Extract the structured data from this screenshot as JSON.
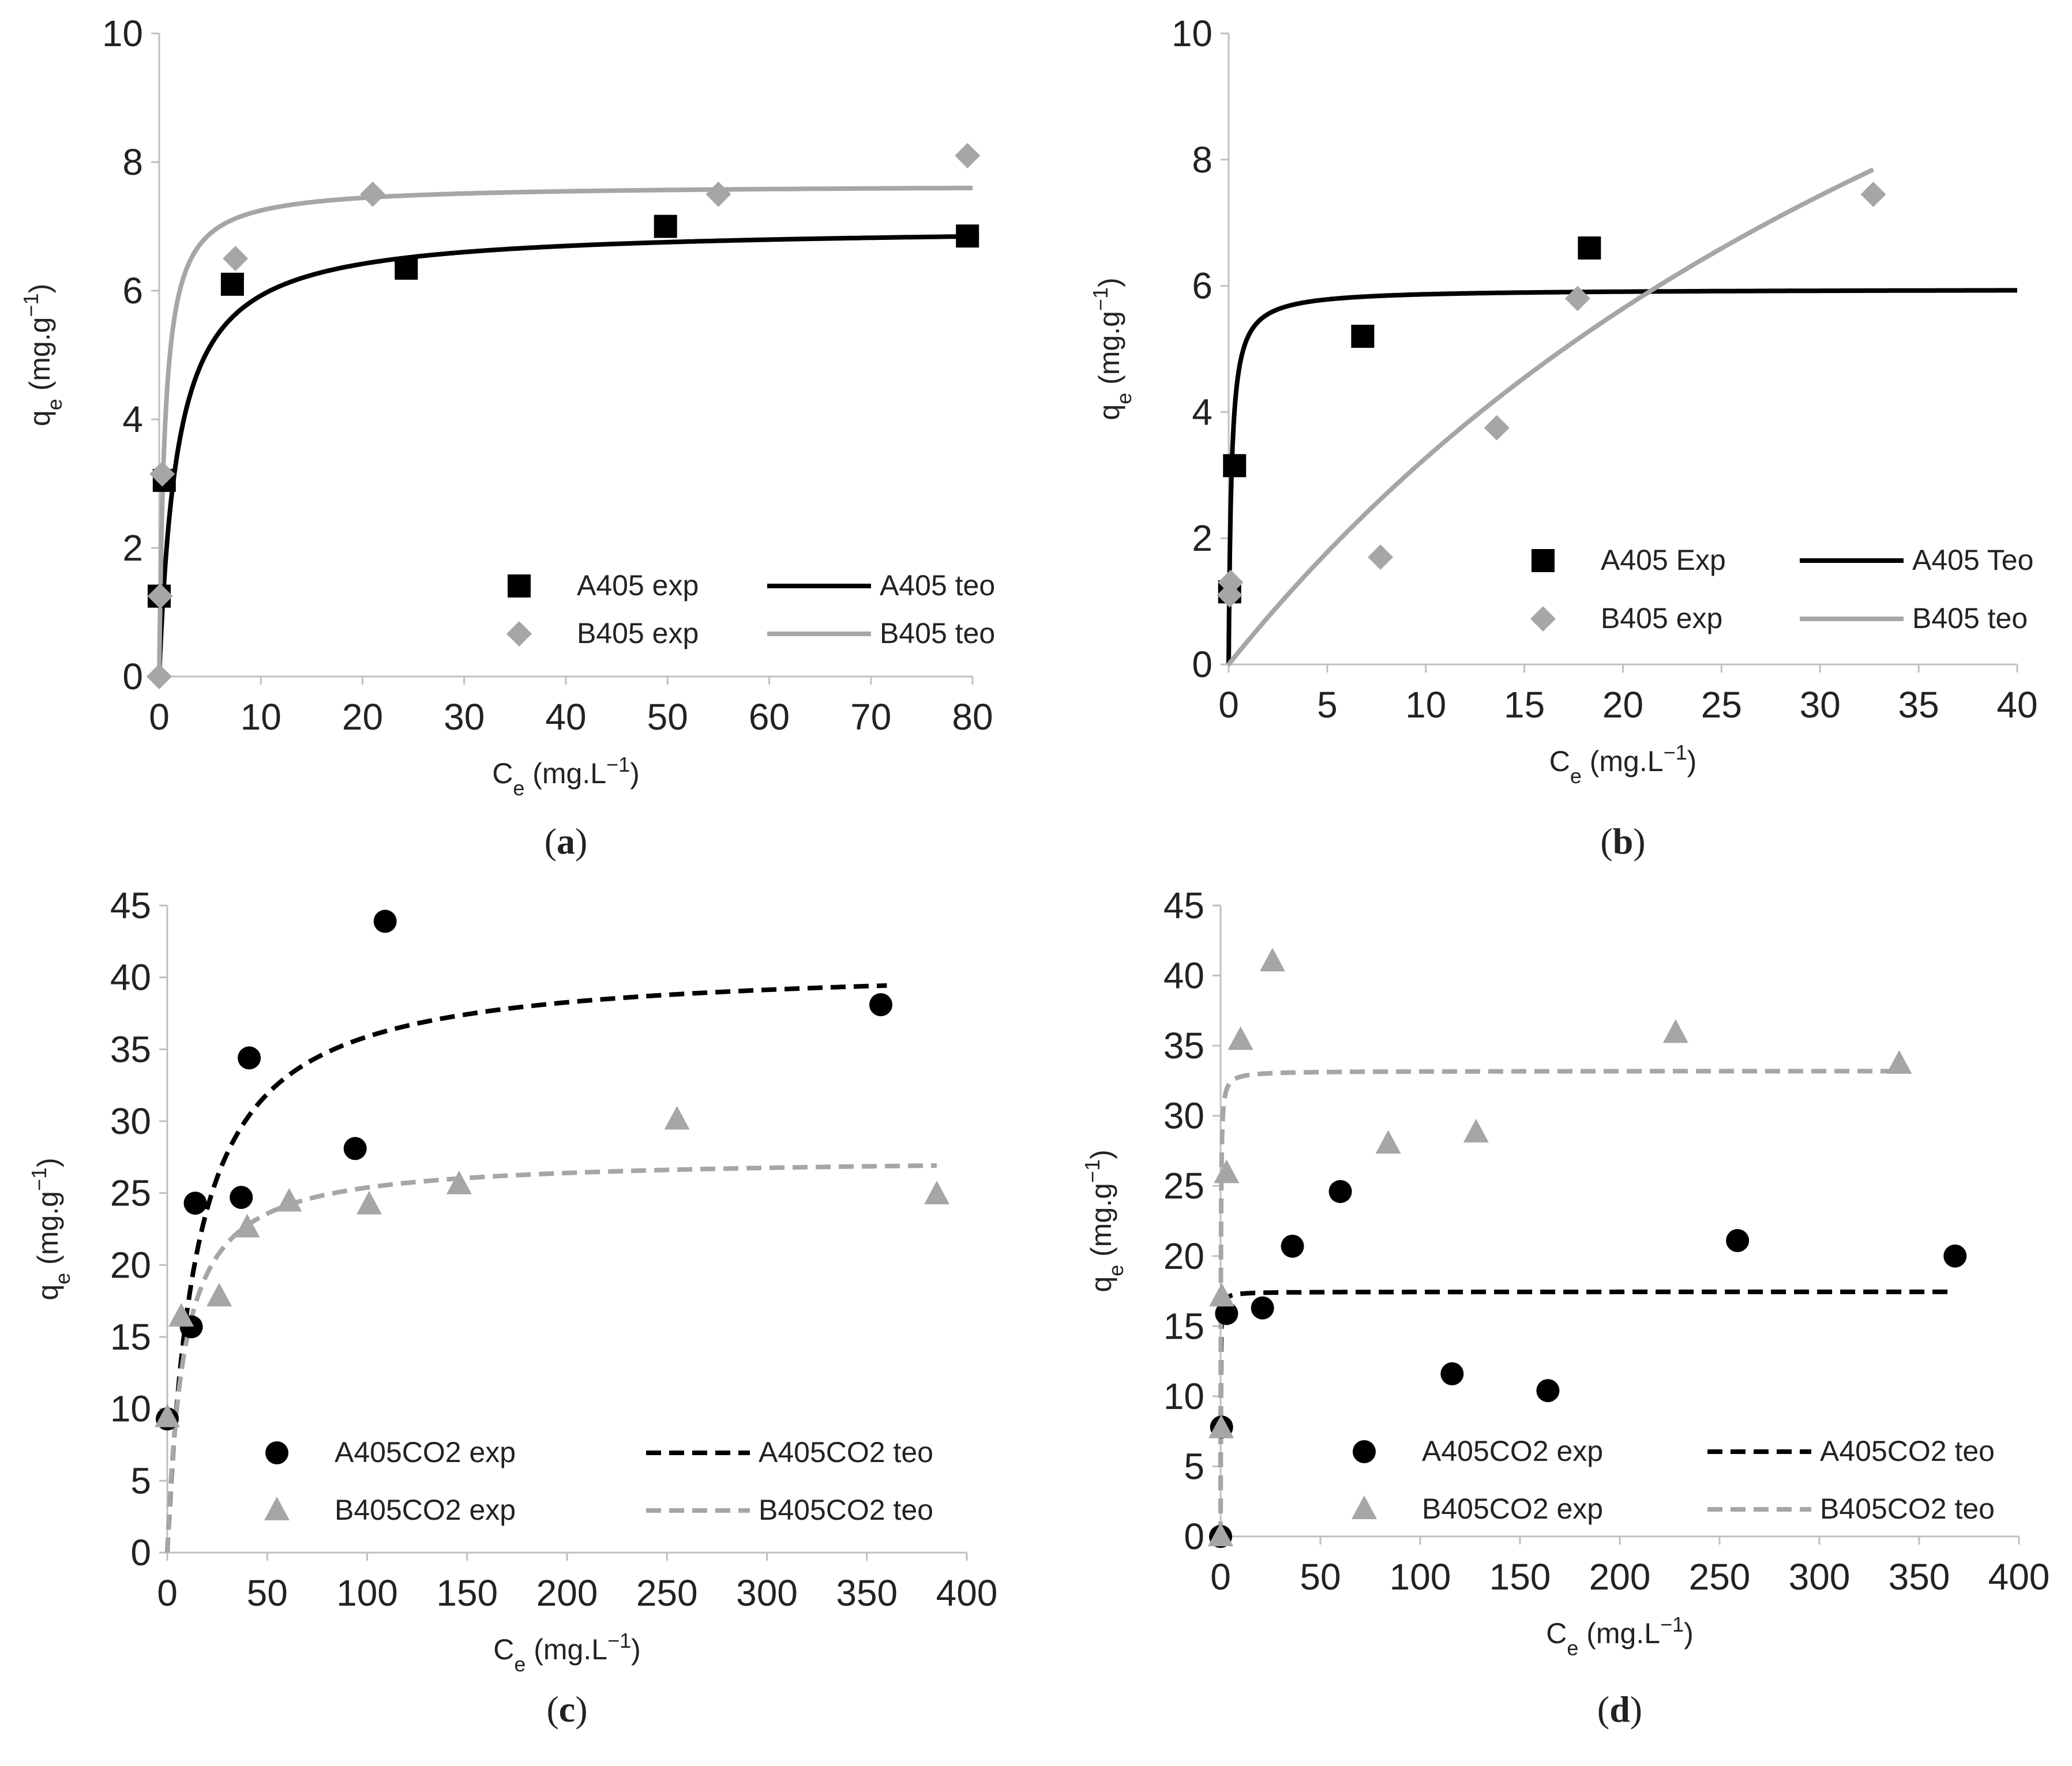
{
  "chart_data": [
    {
      "panel": "a",
      "type": "scatter",
      "panel_label": "(a)",
      "xlabel": "Ce (mg.L−1)",
      "ylabel": "qe (mg.g−1)",
      "xlim": [
        0,
        80
      ],
      "xticks": [
        0,
        10,
        20,
        30,
        40,
        50,
        60,
        70,
        80
      ],
      "ylim": [
        0,
        10
      ],
      "yticks": [
        0,
        2,
        4,
        6,
        8,
        10
      ],
      "legend_position": "bottom-right",
      "legend_order": [
        "A405 exp",
        "A405 teo",
        "B405 exp",
        "B405 teo"
      ],
      "series": [
        {
          "name": "A405 exp",
          "kind": "points",
          "marker": "square",
          "color": "#000000",
          "x": [
            0,
            0.5,
            7.2,
            24.3,
            49.8,
            79.5
          ],
          "y": [
            1.25,
            3.05,
            6.1,
            6.35,
            7.0,
            6.85
          ]
        },
        {
          "name": "B405 exp",
          "kind": "points",
          "marker": "diamond",
          "color": "#a6a6a6",
          "x": [
            0,
            0.1,
            0.3,
            7.5,
            21.0,
            55.0,
            79.5
          ],
          "y": [
            0.0,
            1.25,
            3.15,
            6.5,
            7.5,
            7.5,
            8.1
          ]
        },
        {
          "name": "A405 teo",
          "kind": "line",
          "dash": "solid",
          "color": "#000000",
          "model": "langmuir",
          "qmax": 7.0,
          "K": 0.55,
          "xrange": [
            0,
            80
          ]
        },
        {
          "name": "B405 teo",
          "kind": "line",
          "dash": "solid",
          "color": "#a6a6a6",
          "model": "langmuir",
          "qmax": 7.65,
          "K": 1.8,
          "xrange": [
            0,
            80
          ]
        }
      ]
    },
    {
      "panel": "b",
      "type": "scatter",
      "panel_label": "(b)",
      "xlabel": "Ce (mg.L−1)",
      "ylabel": "qe (mg.g−1)",
      "xlim": [
        0,
        40
      ],
      "xticks": [
        0,
        5,
        10,
        15,
        20,
        25,
        30,
        35,
        40
      ],
      "ylim": [
        0,
        10
      ],
      "yticks": [
        0,
        2,
        4,
        6,
        8,
        10
      ],
      "legend_position": "bottom-right",
      "legend_order": [
        "A405 Exp",
        "A405 Teo",
        "B405 exp",
        "B405 teo"
      ],
      "series": [
        {
          "name": "A405 Exp",
          "kind": "points",
          "marker": "square",
          "color": "#000000",
          "x": [
            0.05,
            0.3,
            6.8,
            18.3
          ],
          "y": [
            1.15,
            3.15,
            5.2,
            6.6
          ]
        },
        {
          "name": "B405 exp",
          "kind": "points",
          "marker": "diamond",
          "color": "#a6a6a6",
          "x": [
            0.05,
            0.1,
            7.7,
            13.6,
            17.7,
            32.7
          ],
          "y": [
            1.1,
            1.3,
            1.7,
            3.75,
            5.8,
            7.45
          ]
        },
        {
          "name": "A405 Teo",
          "kind": "line",
          "dash": "solid",
          "color": "#000000",
          "model": "langmuir",
          "qmax": 5.95,
          "K": 7.0,
          "xrange": [
            0,
            40
          ]
        },
        {
          "name": "B405 teo",
          "kind": "line",
          "dash": "solid",
          "color": "#a6a6a6",
          "model": "langmuir",
          "qmax": 20.4,
          "K": 0.0191,
          "xrange": [
            0,
            32.7
          ]
        }
      ]
    },
    {
      "panel": "c",
      "type": "scatter",
      "panel_label": "(c)",
      "xlabel": "Ce (mg.L−1)",
      "ylabel": "qe (mg.g−1)",
      "xlim": [
        0,
        400
      ],
      "xticks": [
        0,
        50,
        100,
        150,
        200,
        250,
        300,
        350,
        400
      ],
      "ylim": [
        0,
        45
      ],
      "yticks": [
        0,
        5,
        10,
        15,
        20,
        25,
        30,
        35,
        40,
        45
      ],
      "legend_position": "bottom-right",
      "legend_order": [
        "A405CO2 exp",
        "A405CO2 teo",
        "B405CO2 exp",
        "B405CO2 teo"
      ],
      "series": [
        {
          "name": "A405CO2 exp",
          "kind": "points",
          "marker": "circle",
          "color": "#000000",
          "x": [
            0,
            12,
            14,
            37,
            41,
            94,
            109,
            357
          ],
          "y": [
            9.3,
            15.7,
            24.3,
            24.7,
            34.4,
            28.1,
            43.9,
            38.1
          ]
        },
        {
          "name": "B405CO2 exp",
          "kind": "points",
          "marker": "triangle",
          "color": "#a6a6a6",
          "x": [
            0,
            7,
            26,
            40,
            61,
            101,
            146,
            255,
            385
          ],
          "y": [
            9.4,
            16.4,
            17.8,
            22.6,
            24.4,
            24.2,
            25.6,
            30.1,
            24.9
          ]
        },
        {
          "name": "A405CO2 teo",
          "kind": "line",
          "dash": "dashed",
          "color": "#000000",
          "model": "langmuir",
          "qmax": 41.0,
          "K": 0.07,
          "xrange": [
            0,
            360
          ]
        },
        {
          "name": "B405CO2 teo",
          "kind": "line",
          "dash": "dashed",
          "color": "#a6a6a6",
          "model": "langmuir",
          "qmax": 27.5,
          "K": 0.12,
          "xrange": [
            0,
            385
          ]
        }
      ]
    },
    {
      "panel": "d",
      "type": "scatter",
      "panel_label": "(d)",
      "xlabel": "Ce (mg.L−1)",
      "ylabel": "qe (mg.g−1)",
      "xlim": [
        0,
        400
      ],
      "xticks": [
        0,
        50,
        100,
        150,
        200,
        250,
        300,
        350,
        400
      ],
      "ylim": [
        0,
        45
      ],
      "yticks": [
        0,
        5,
        10,
        15,
        20,
        25,
        30,
        35,
        40,
        45
      ],
      "legend_position": "bottom-right",
      "legend_order": [
        "A405CO2 exp",
        "A405CO2 teo",
        "B405CO2 exp",
        "B405CO2 teo"
      ],
      "series": [
        {
          "name": "A405CO2 exp",
          "kind": "points",
          "marker": "circle",
          "color": "#000000",
          "x": [
            0,
            0.5,
            3,
            21,
            36,
            60,
            116,
            164,
            259,
            368
          ],
          "y": [
            0,
            7.8,
            15.9,
            16.3,
            20.7,
            24.6,
            11.6,
            10.4,
            21.1,
            20.0
          ]
        },
        {
          "name": "B405CO2 exp",
          "kind": "points",
          "marker": "triangle",
          "color": "#a6a6a6",
          "x": [
            0,
            0.3,
            0.6,
            3,
            10,
            26,
            84,
            128,
            228,
            340
          ],
          "y": [
            0,
            7.7,
            17.1,
            25.9,
            35.4,
            41.0,
            28.0,
            28.8,
            35.9,
            33.7
          ]
        },
        {
          "name": "A405CO2 teo",
          "kind": "line",
          "dash": "dashed",
          "color": "#000000",
          "model": "langmuir",
          "qmax": 17.45,
          "K": 12.0,
          "xrange": [
            0,
            368
          ]
        },
        {
          "name": "B405CO2 teo",
          "kind": "line",
          "dash": "dashed",
          "color": "#a6a6a6",
          "model": "langmuir",
          "qmax": 33.2,
          "K": 8.0,
          "xrange": [
            0,
            340
          ]
        }
      ]
    }
  ]
}
